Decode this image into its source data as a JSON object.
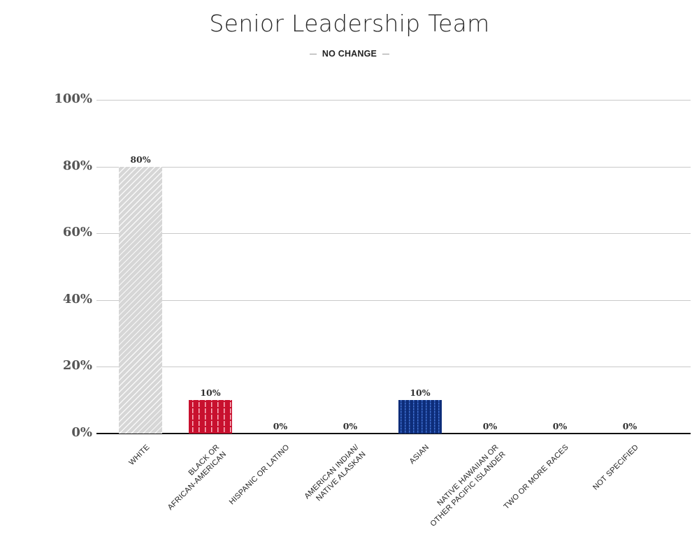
{
  "header": {
    "title": "Senior Leadership Team",
    "subtitle": "NO CHANGE"
  },
  "y_axis": {
    "ticks": [
      "0%",
      "20%",
      "40%",
      "60%",
      "80%",
      "100%"
    ]
  },
  "bars": [
    {
      "label": "WHITE",
      "value": 80,
      "value_label": "80%",
      "color": "#d6d6d6",
      "pattern": "diagonal-stripes"
    },
    {
      "label": "BLACK OR\nAFRICAN-AMERICAN",
      "value": 10,
      "value_label": "10%",
      "color": "#c8102e",
      "pattern": "vertical-dashes"
    },
    {
      "label": "HISPANIC OR LATINO",
      "value": 0,
      "value_label": "0%",
      "color": "#cccccc",
      "pattern": "none"
    },
    {
      "label": "AMERICAN INDIAN/\nNATIVE ALASKAN",
      "value": 0,
      "value_label": "0%",
      "color": "#cccccc",
      "pattern": "none"
    },
    {
      "label": "ASIAN",
      "value": 10,
      "value_label": "10%",
      "color": "#0d2d7a",
      "pattern": "wavy-lines"
    },
    {
      "label": "NATIVE HAWAIIAN OR\nOTHER PACIFIC ISLANDER",
      "value": 0,
      "value_label": "0%",
      "color": "#cccccc",
      "pattern": "none"
    },
    {
      "label": "TWO OR MORE RACES",
      "value": 0,
      "value_label": "0%",
      "color": "#cccccc",
      "pattern": "none"
    },
    {
      "label": "NOT SPECIFIED",
      "value": 0,
      "value_label": "0%",
      "color": "#cccccc",
      "pattern": "none"
    }
  ],
  "chart_data": {
    "type": "bar",
    "title": "Senior Leadership Team",
    "subtitle": "NO CHANGE",
    "categories": [
      "WHITE",
      "BLACK OR AFRICAN-AMERICAN",
      "HISPANIC OR LATINO",
      "AMERICAN INDIAN/ NATIVE ALASKAN",
      "ASIAN",
      "NATIVE HAWAIIAN OR OTHER PACIFIC ISLANDER",
      "TWO OR MORE RACES",
      "NOT SPECIFIED"
    ],
    "values": [
      80,
      10,
      0,
      0,
      10,
      0,
      0,
      0
    ],
    "data_labels": [
      "80%",
      "10%",
      "0%",
      "0%",
      "10%",
      "0%",
      "0%",
      "0%"
    ],
    "xlabel": "",
    "ylabel": "",
    "ylim": [
      0,
      100
    ],
    "yticks": [
      0,
      20,
      40,
      60,
      80,
      100
    ],
    "ytick_format": "percent",
    "grid": "horizontal",
    "legend": "none",
    "bar_colors": [
      "#d6d6d6",
      "#c8102e",
      null,
      null,
      "#0d2d7a",
      null,
      null,
      null
    ]
  }
}
